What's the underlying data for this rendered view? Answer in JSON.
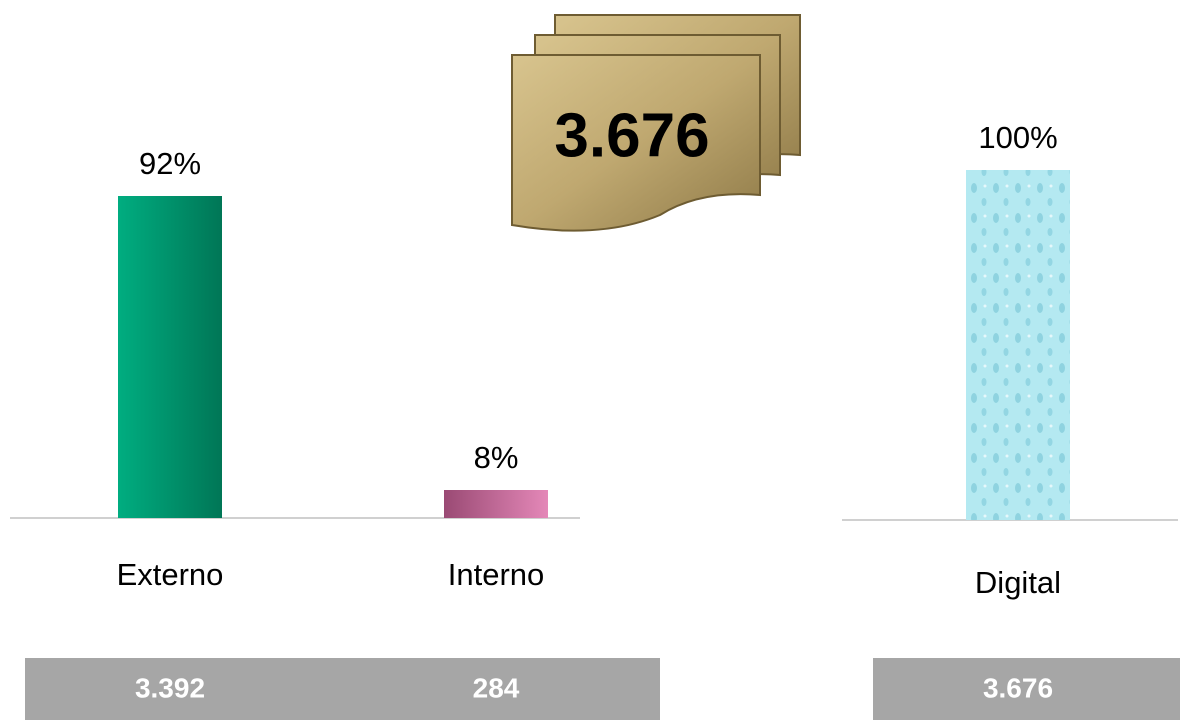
{
  "banner": {
    "value": 3676,
    "label": "3.676"
  },
  "chart_data": [
    {
      "type": "bar",
      "categories": [
        "Externo",
        "Interno"
      ],
      "values": [
        92,
        8
      ],
      "value_labels": [
        "92%",
        "8%"
      ],
      "colors": [
        "#00936a",
        "#c0689a"
      ],
      "counts": [
        {
          "value": 3392,
          "label": "3.392"
        },
        {
          "value": 284,
          "label": "284"
        }
      ]
    },
    {
      "type": "bar",
      "categories": [
        "Digital"
      ],
      "values": [
        100
      ],
      "value_labels": [
        "100%"
      ],
      "colors": [
        "#a8e4ee"
      ],
      "counts": [
        {
          "value": 3676,
          "label": "3.676"
        }
      ]
    }
  ]
}
